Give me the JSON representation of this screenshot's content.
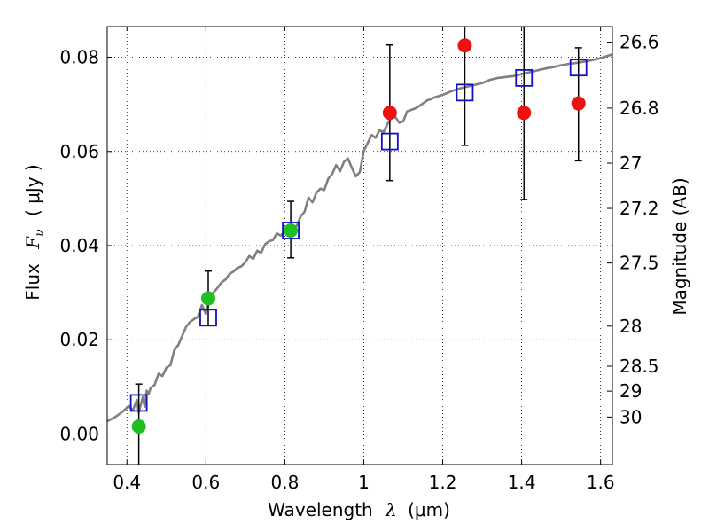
{
  "chart_data": {
    "type": "scatter",
    "xlabel_text": "Wavelength",
    "xlabel_symbol": "λ",
    "xlabel_unit": "(μm)",
    "ylabel_text": "Flux",
    "ylabel_symbol": "F",
    "ylabel_subscript": "ν",
    "ylabel_unit": "( μJy )",
    "y2label": "Magnitude (AB)",
    "xlim": [
      0.35,
      1.63
    ],
    "ylim": [
      -0.0065,
      0.0865
    ],
    "x_ticks": [
      0.4,
      0.6,
      0.8,
      1.0,
      1.2,
      1.4,
      1.6
    ],
    "x_tick_labels": [
      "0.4",
      "0.6",
      "0.8",
      "1",
      "1.2",
      "1.4",
      "1.6"
    ],
    "y_ticks": [
      0.0,
      0.02,
      0.04,
      0.06,
      0.08
    ],
    "y_tick_labels": [
      "0.00",
      "0.02",
      "0.04",
      "0.06",
      "0.08"
    ],
    "mag_ticks": [
      {
        "label": "26.6",
        "flux": 0.0832
      },
      {
        "label": "26.8",
        "flux": 0.0692
      },
      {
        "label": "27",
        "flux": 0.0575
      },
      {
        "label": "27.2",
        "flux": 0.0479
      },
      {
        "label": "27.5",
        "flux": 0.0363
      },
      {
        "label": "28",
        "flux": 0.0229
      },
      {
        "label": "28.5",
        "flux": 0.0144
      },
      {
        "label": "29",
        "flux": 0.0091
      },
      {
        "label": "30",
        "flux": 0.0036
      }
    ],
    "series": [
      {
        "name": "model spectrum",
        "kind": "line",
        "color": "#808080",
        "x": [
          0.35,
          0.37,
          0.39,
          0.405,
          0.415,
          0.425,
          0.43,
          0.435,
          0.44,
          0.445,
          0.45,
          0.455,
          0.46,
          0.47,
          0.48,
          0.49,
          0.5,
          0.51,
          0.52,
          0.53,
          0.54,
          0.55,
          0.56,
          0.57,
          0.58,
          0.59,
          0.6,
          0.61,
          0.62,
          0.63,
          0.64,
          0.65,
          0.66,
          0.67,
          0.68,
          0.69,
          0.7,
          0.71,
          0.72,
          0.73,
          0.74,
          0.75,
          0.76,
          0.77,
          0.78,
          0.79,
          0.8,
          0.81,
          0.82,
          0.83,
          0.84,
          0.85,
          0.86,
          0.87,
          0.88,
          0.89,
          0.9,
          0.91,
          0.92,
          0.93,
          0.94,
          0.95,
          0.96,
          0.97,
          0.98,
          0.99,
          1.0,
          1.01,
          1.02,
          1.03,
          1.04,
          1.05,
          1.06,
          1.07,
          1.08,
          1.09,
          1.1,
          1.11,
          1.12,
          1.13,
          1.14,
          1.15,
          1.16,
          1.17,
          1.18,
          1.2,
          1.22,
          1.24,
          1.26,
          1.28,
          1.3,
          1.32,
          1.34,
          1.36,
          1.38,
          1.4,
          1.42,
          1.44,
          1.46,
          1.48,
          1.5,
          1.52,
          1.54,
          1.56,
          1.58,
          1.6,
          1.63
        ],
        "y": [
          0.0027,
          0.0036,
          0.0048,
          0.006,
          0.005,
          0.0072,
          0.0046,
          0.0062,
          0.0078,
          0.0058,
          0.0092,
          0.0085,
          0.0098,
          0.0104,
          0.0128,
          0.0123,
          0.0141,
          0.0146,
          0.0178,
          0.0189,
          0.0208,
          0.0228,
          0.0238,
          0.0244,
          0.0249,
          0.0274,
          0.0255,
          0.0292,
          0.0301,
          0.0311,
          0.0322,
          0.0328,
          0.034,
          0.0345,
          0.0353,
          0.0356,
          0.0365,
          0.0378,
          0.0372,
          0.0389,
          0.0385,
          0.0403,
          0.0409,
          0.0412,
          0.0426,
          0.0421,
          0.0432,
          0.0436,
          0.0439,
          0.0442,
          0.0462,
          0.0472,
          0.0502,
          0.0492,
          0.0512,
          0.0521,
          0.0518,
          0.0542,
          0.0552,
          0.0571,
          0.0558,
          0.0578,
          0.0585,
          0.0565,
          0.0547,
          0.0556,
          0.0601,
          0.0618,
          0.0635,
          0.0629,
          0.0645,
          0.0641,
          0.0658,
          0.0672,
          0.0673,
          0.0661,
          0.0664,
          0.0685,
          0.0688,
          0.0691,
          0.0696,
          0.0702,
          0.0708,
          0.0711,
          0.0715,
          0.072,
          0.0727,
          0.0733,
          0.0737,
          0.0741,
          0.0745,
          0.0752,
          0.0756,
          0.0758,
          0.076,
          0.0764,
          0.0768,
          0.0772,
          0.0776,
          0.0779,
          0.0783,
          0.0786,
          0.0788,
          0.0791,
          0.0794,
          0.0798,
          0.0806
        ]
      },
      {
        "name": "observed (green)",
        "kind": "points",
        "color": "#1fbf1f",
        "x": [
          0.43,
          0.606,
          0.815
        ],
        "y": [
          0.0016,
          0.0288,
          0.0432
        ],
        "err_low": [
          0.0087,
          0.0058,
          0.0058
        ],
        "err_high": [
          0.009,
          0.0058,
          0.0062
        ]
      },
      {
        "name": "observed (red)",
        "kind": "points",
        "color": "#ee1111",
        "x": [
          1.066,
          1.256,
          1.406,
          1.544
        ],
        "y": [
          0.0682,
          0.0825,
          0.0682,
          0.0702
        ],
        "err_low": [
          0.0144,
          0.0212,
          0.0184,
          0.0122
        ],
        "err_high": [
          0.0144,
          0.0041,
          0.0185,
          0.0118
        ]
      },
      {
        "name": "model photometry",
        "kind": "squares",
        "color": "#1010cc",
        "x": [
          0.43,
          0.606,
          0.815,
          1.066,
          1.256,
          1.406,
          1.544
        ],
        "y": [
          0.0066,
          0.0247,
          0.0432,
          0.0621,
          0.0725,
          0.0756,
          0.0778
        ]
      }
    ]
  }
}
